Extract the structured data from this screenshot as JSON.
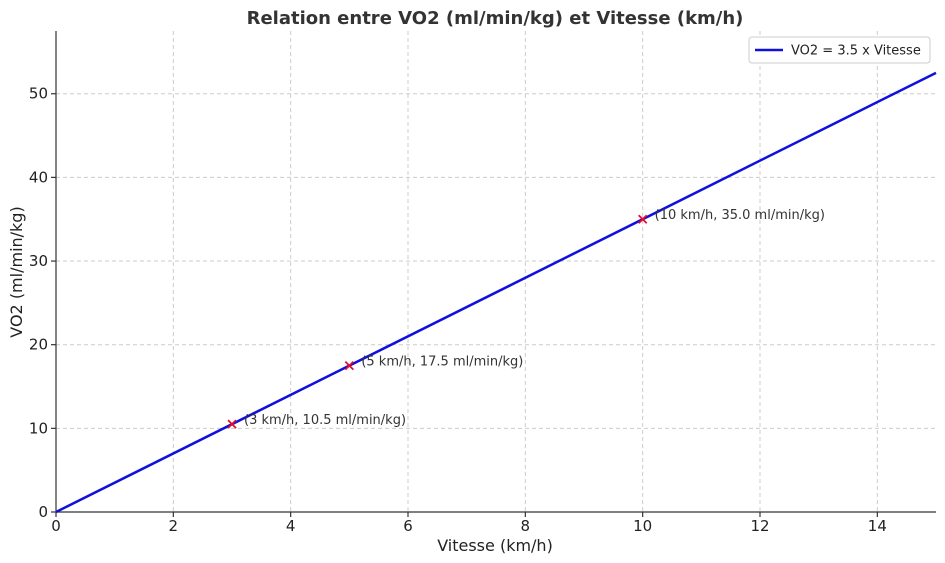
{
  "chart_data": {
    "type": "line",
    "title": "Relation entre VO2 (ml/min/kg) et Vitesse (km/h)",
    "xlabel": "Vitesse (km/h)",
    "ylabel": "VO2 (ml/min/kg)",
    "xlim": [
      0,
      15
    ],
    "ylim": [
      0,
      57.5
    ],
    "xticks": [
      0,
      2,
      4,
      6,
      8,
      10,
      12,
      14
    ],
    "yticks": [
      0,
      10,
      20,
      30,
      40,
      50
    ],
    "grid": true,
    "legend_position": "top-right",
    "series": [
      {
        "name": "VO2 = 3.5 x Vitesse",
        "color": "#1010dd",
        "x": [
          0,
          15
        ],
        "y": [
          0,
          52.5
        ]
      }
    ],
    "points": [
      {
        "x": 3,
        "y": 10.5,
        "label": "(3 km/h, 10.5 ml/min/kg)",
        "color": "#e0102a"
      },
      {
        "x": 5,
        "y": 17.5,
        "label": "(5 km/h, 17.5 ml/min/kg)",
        "color": "#e0102a"
      },
      {
        "x": 10,
        "y": 35.0,
        "label": "(10 km/h, 35.0 ml/min/kg)",
        "color": "#e0102a"
      }
    ]
  }
}
